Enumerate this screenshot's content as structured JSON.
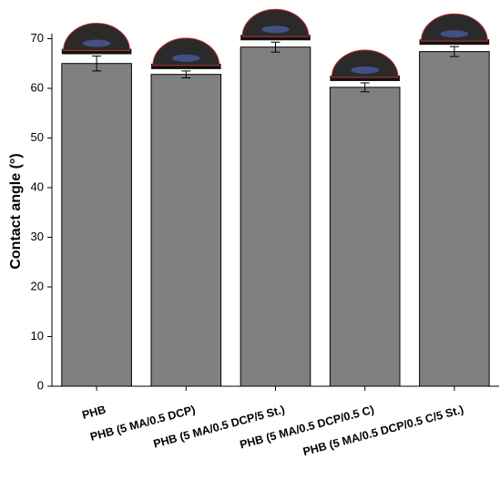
{
  "chart_data": {
    "type": "bar",
    "y_label": "Contact angle (°)",
    "categories": [
      "PHB",
      "PHB (5 MA/0.5 DCP)",
      "PHB (5 MA/0.5 DCP/5 St.)",
      "PHB (5 MA/0.5 DCP/0.5 C)",
      "PHB (5 MA/0.5 DCP/0.5 C/5 St.)"
    ],
    "values": [
      65.0,
      62.8,
      68.3,
      60.2,
      67.4
    ],
    "errors": [
      1.5,
      0.7,
      1.0,
      0.9,
      1.0
    ],
    "color": "#808080",
    "ylim": [
      0,
      71
    ],
    "yticks": [
      0,
      10,
      20,
      30,
      40,
      50,
      60,
      70
    ],
    "grid": false
  }
}
